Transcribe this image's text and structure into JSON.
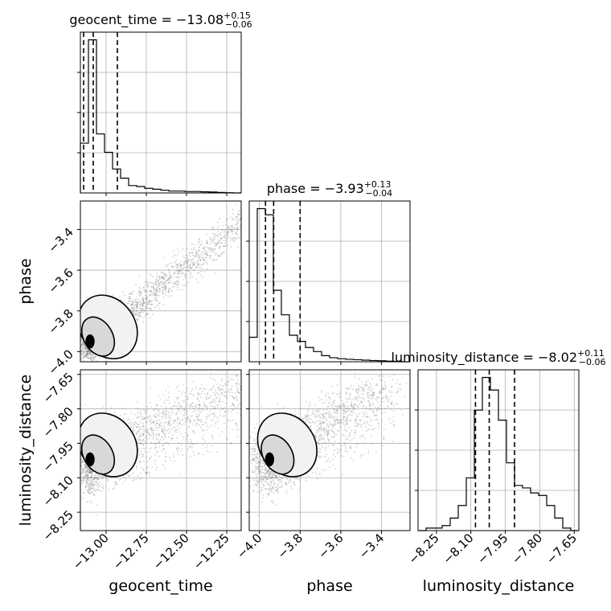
{
  "chart_data": {
    "type": "corner",
    "parameters": [
      "geocent_time",
      "phase",
      "luminosity_distance"
    ],
    "axis_labels": {
      "x": [
        "geocent_time",
        "phase",
        "luminosity_distance"
      ],
      "y": [
        "phase",
        "luminosity_distance"
      ]
    },
    "titles": [
      {
        "name": "geocent_time",
        "median": "−13.08",
        "plus": "+0.15",
        "minus": "−0.06"
      },
      {
        "name": "phase",
        "median": "−3.93",
        "plus": "+0.13",
        "minus": "−0.04"
      },
      {
        "name": "luminosity_distance",
        "median": "−8.02",
        "plus": "+0.11",
        "minus": "−0.06"
      }
    ],
    "ranges": {
      "geocent_time": [
        -13.16,
        -12.16
      ],
      "phase": [
        -4.05,
        -3.26
      ],
      "luminosity_distance": [
        -8.33,
        -7.63
      ]
    },
    "ticks": {
      "geocent_time": {
        "values": [
          -13.0,
          -12.75,
          -12.5,
          -12.25
        ],
        "labels": [
          "−13.00",
          "−12.75",
          "−12.50",
          "−12.25"
        ]
      },
      "phase": {
        "values": [
          -4.0,
          -3.8,
          -3.6,
          -3.4
        ],
        "labels": [
          "−4.0",
          "−3.8",
          "−3.6",
          "−3.4"
        ]
      },
      "luminosity_distance": {
        "values": [
          -8.25,
          -8.1,
          -7.95,
          -7.8,
          -7.65
        ],
        "labels": [
          "−8.25",
          "−8.10",
          "−7.95",
          "−7.80",
          "−7.65"
        ]
      }
    },
    "quantiles": {
      "geocent_time": [
        -13.14,
        -13.08,
        -12.93
      ],
      "phase": [
        -3.97,
        -3.93,
        -3.8
      ],
      "luminosity_distance": [
        -8.08,
        -8.02,
        -7.91
      ]
    },
    "histograms": {
      "geocent_time": {
        "range": [
          -13.16,
          -12.16
        ],
        "counts": [
          0.27,
          0.83,
          0.32,
          0.22,
          0.13,
          0.08,
          0.04,
          0.035,
          0.025,
          0.02,
          0.015,
          0.01,
          0.01,
          0.008,
          0.008,
          0.006,
          0.005,
          0.003,
          0.001,
          0.0
        ]
      },
      "phase": {
        "range": [
          -4.05,
          -3.26
        ],
        "counts": [
          0.12,
          0.75,
          0.72,
          0.35,
          0.23,
          0.13,
          0.1,
          0.07,
          0.05,
          0.03,
          0.02,
          0.015,
          0.012,
          0.01,
          0.008,
          0.006,
          0.005,
          0.003,
          0.002,
          0.0
        ]
      },
      "luminosity_distance": {
        "range": [
          -8.33,
          -7.63
        ],
        "counts": [
          0.0,
          0.01,
          0.01,
          0.02,
          0.05,
          0.1,
          0.21,
          0.48,
          0.61,
          0.56,
          0.44,
          0.27,
          0.18,
          0.17,
          0.15,
          0.14,
          0.1,
          0.05,
          0.01,
          0.0
        ]
      }
    },
    "grid": true,
    "contour_levels": [
      "inner",
      "middle",
      "outer"
    ],
    "scatter_color": "#7f7f7f",
    "line_color": "#000000"
  }
}
